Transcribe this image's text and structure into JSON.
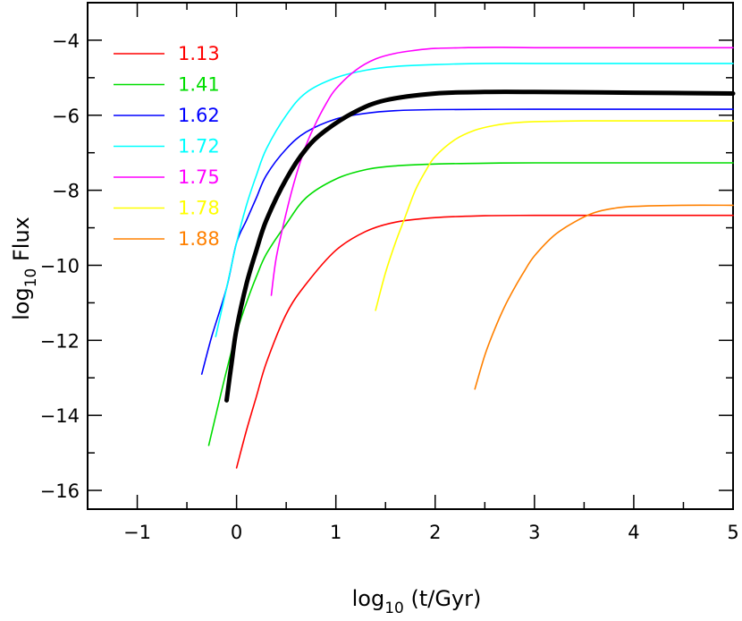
{
  "chart_data": {
    "type": "line",
    "xlabel": {
      "base": "log",
      "sub": "10",
      "rest": " (t/Gyr)"
    },
    "ylabel": {
      "base": "log",
      "sub": "10",
      "rest": " Flux"
    },
    "xlim": [
      -1.5,
      5
    ],
    "ylim": [
      -16.5,
      -3
    ],
    "xticks": [
      -1,
      0,
      1,
      2,
      3,
      4,
      5
    ],
    "yticks": [
      -16,
      -14,
      -12,
      -10,
      -8,
      -6,
      -4
    ],
    "xtick_labels": [
      "−1",
      "0",
      "1",
      "2",
      "3",
      "4",
      "5"
    ],
    "ytick_labels": [
      "−16",
      "−14",
      "−12",
      "−10",
      "−8",
      "−6",
      "−4"
    ],
    "grid": false,
    "legend_position": "top-left",
    "series": [
      {
        "name": "1.13",
        "color": "#ff0000",
        "width": 1.6,
        "x": [
          0.0,
          0.1,
          0.2,
          0.3,
          0.5,
          0.7,
          1.0,
          1.3,
          1.6,
          2.0,
          2.5,
          3.0,
          4.0,
          5.0
        ],
        "y": [
          -15.4,
          -14.4,
          -13.5,
          -12.6,
          -11.3,
          -10.5,
          -9.6,
          -9.1,
          -8.85,
          -8.73,
          -8.68,
          -8.67,
          -8.67,
          -8.67
        ]
      },
      {
        "name": "1.41",
        "color": "#00dd00",
        "width": 1.6,
        "x": [
          -0.28,
          -0.2,
          -0.1,
          0.0,
          0.1,
          0.2,
          0.3,
          0.5,
          0.7,
          1.0,
          1.3,
          1.6,
          2.0,
          2.5,
          3.0,
          4.0,
          5.0
        ],
        "y": [
          -14.8,
          -13.9,
          -12.8,
          -11.8,
          -11.0,
          -10.3,
          -9.7,
          -8.9,
          -8.2,
          -7.7,
          -7.45,
          -7.35,
          -7.3,
          -7.28,
          -7.27,
          -7.27,
          -7.27
        ]
      },
      {
        "name": "1.62",
        "color": "#0000ff",
        "width": 1.6,
        "x": [
          -0.35,
          -0.25,
          -0.1,
          0.0,
          0.1,
          0.2,
          0.3,
          0.5,
          0.7,
          1.0,
          1.3,
          1.6,
          2.0,
          3.0,
          4.0,
          5.0
        ],
        "y": [
          -12.9,
          -11.9,
          -10.6,
          -9.4,
          -8.8,
          -8.2,
          -7.6,
          -6.9,
          -6.45,
          -6.1,
          -5.95,
          -5.88,
          -5.85,
          -5.84,
          -5.84,
          -5.84
        ]
      },
      {
        "name": "1.72",
        "color": "#00ffff",
        "width": 1.6,
        "x": [
          -0.21,
          -0.1,
          0.0,
          0.1,
          0.2,
          0.3,
          0.5,
          0.7,
          1.0,
          1.3,
          1.6,
          2.0,
          2.5,
          3.0,
          4.0,
          5.0
        ],
        "y": [
          -11.9,
          -10.6,
          -9.4,
          -8.4,
          -7.6,
          -6.9,
          -6.0,
          -5.4,
          -5.0,
          -4.8,
          -4.7,
          -4.65,
          -4.62,
          -4.62,
          -4.62,
          -4.62
        ]
      },
      {
        "name": "1.75",
        "color": "#ff00ff",
        "width": 1.6,
        "x": [
          0.35,
          0.4,
          0.5,
          0.6,
          0.7,
          0.8,
          0.9,
          1.0,
          1.2,
          1.4,
          1.6,
          1.8,
          2.0,
          2.3,
          2.6,
          3.0,
          4.0,
          5.0
        ],
        "y": [
          -10.8,
          -9.8,
          -8.6,
          -7.6,
          -6.8,
          -6.2,
          -5.7,
          -5.3,
          -4.8,
          -4.5,
          -4.35,
          -4.27,
          -4.22,
          -4.2,
          -4.19,
          -4.2,
          -4.2,
          -4.2
        ]
      },
      {
        "name": "1.78",
        "color": "#ffff00",
        "width": 1.6,
        "x": [
          1.4,
          1.5,
          1.6,
          1.7,
          1.8,
          1.9,
          2.0,
          2.2,
          2.4,
          2.6,
          2.8,
          3.0,
          3.5,
          4.0,
          5.0
        ],
        "y": [
          -11.2,
          -10.2,
          -9.4,
          -8.7,
          -8.0,
          -7.5,
          -7.1,
          -6.65,
          -6.4,
          -6.27,
          -6.2,
          -6.17,
          -6.15,
          -6.15,
          -6.15
        ]
      },
      {
        "name": "1.88",
        "color": "#ff8000",
        "width": 1.6,
        "x": [
          2.4,
          2.5,
          2.6,
          2.7,
          2.8,
          2.9,
          3.0,
          3.2,
          3.4,
          3.6,
          3.8,
          4.0,
          4.5,
          5.0
        ],
        "y": [
          -13.3,
          -12.4,
          -11.7,
          -11.1,
          -10.6,
          -10.15,
          -9.75,
          -9.2,
          -8.85,
          -8.6,
          -8.48,
          -8.43,
          -8.4,
          -8.4
        ]
      },
      {
        "color": "#000000",
        "width": 5,
        "x": [
          -0.1,
          -0.05,
          0.0,
          0.1,
          0.2,
          0.3,
          0.5,
          0.7,
          0.9,
          1.2,
          1.5,
          2.0,
          2.5,
          3.0,
          4.0,
          5.0
        ],
        "y": [
          -13.6,
          -12.6,
          -11.7,
          -10.5,
          -9.6,
          -8.8,
          -7.7,
          -6.9,
          -6.4,
          -5.9,
          -5.6,
          -5.42,
          -5.38,
          -5.38,
          -5.4,
          -5.42
        ]
      }
    ]
  }
}
